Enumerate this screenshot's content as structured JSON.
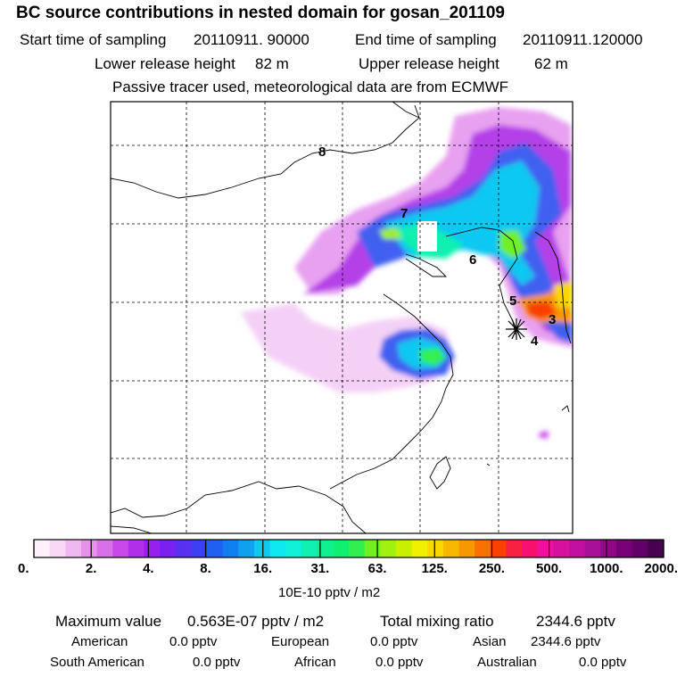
{
  "header": {
    "title": "BC  source contributions in nested domain for gosan_201109",
    "start_label": "Start time of sampling",
    "start_value": "20110911. 90000",
    "end_label": "End time of sampling",
    "end_value": "20110911.120000",
    "lower_label": "Lower release height",
    "lower_value": "82 m",
    "upper_label": "Upper release height",
    "upper_value": "62 m",
    "note": "Passive tracer used, meteorological data are from ECMWF"
  },
  "map": {
    "grid": "dashed",
    "receptor_marker": "star",
    "trajectory_labels": [
      "8",
      "7",
      "6",
      "5",
      "3",
      "4"
    ]
  },
  "colorbar": {
    "tick_labels": [
      "0.",
      "2.",
      "4.",
      "8.",
      "16.",
      "31.",
      "63.",
      "125.",
      "250.",
      "500.",
      "1000.",
      "2000."
    ],
    "units": "10E-10 pptv / m2",
    "colors": [
      "#fff0fa",
      "#f8d8f6",
      "#f0b8f0",
      "#e890ec",
      "#d870e8",
      "#c848e8",
      "#b030ea",
      "#9820ee",
      "#7a20f0",
      "#5830f0",
      "#3c40f0",
      "#2060f0",
      "#1080f0",
      "#10a0f0",
      "#10c8f0",
      "#10e8f0",
      "#10f0d8",
      "#10f0b0",
      "#10f090",
      "#10f070",
      "#30f050",
      "#70f020",
      "#a0f010",
      "#c8f000",
      "#f0f000",
      "#f8d800",
      "#f8b800",
      "#f89800",
      "#f87000",
      "#f84000",
      "#f82040",
      "#f81070",
      "#f010a0",
      "#d810a0",
      "#c010a0",
      "#a81098",
      "#900888",
      "#780078",
      "#600068",
      "#480050"
    ]
  },
  "stats": {
    "max_label": "Maximum value",
    "max_value": "0.563E-07 pptv / m2",
    "total_label": "Total mixing ratio",
    "total_value": "2344.6 pptv",
    "regions": [
      {
        "name": "American",
        "value": "0.0 pptv"
      },
      {
        "name": "European",
        "value": "0.0 pptv"
      },
      {
        "name": "Asian",
        "value": "2344.6 pptv"
      },
      {
        "name": "South American",
        "value": "0.0 pptv"
      },
      {
        "name": "African",
        "value": "0.0 pptv"
      },
      {
        "name": "Australian",
        "value": "0.0 pptv"
      }
    ]
  }
}
